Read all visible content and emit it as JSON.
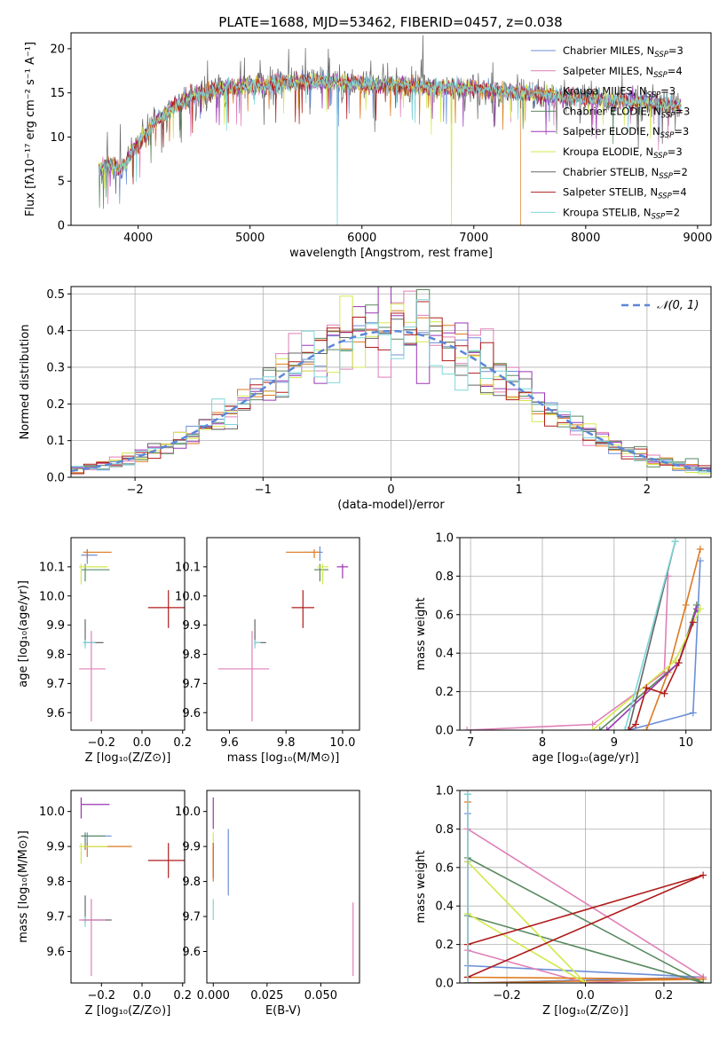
{
  "title": "PLATE=1688, MJD=53462, FIBERID=0457, z=0.038",
  "colors": {
    "Chabrier MILES": "#6b8fd6",
    "Salpeter MILES": "#e07fb7",
    "Kroupa MILES": "#dd7a1f",
    "Chabrier ELODIE": "#5a8a60",
    "Salpeter ELODIE": "#9b36b5",
    "Kroupa ELODIE": "#d3e84b",
    "Chabrier STELIB": "#666666",
    "Salpeter STELIB": "#b01c1c",
    "Kroupa STELIB": "#7fd6da"
  },
  "legend_spectrum": [
    {
      "key": "Chabrier MILES",
      "pre": "Chabrier MILES, N",
      "sub": "SSP",
      "post": "=3"
    },
    {
      "key": "Salpeter MILES",
      "pre": "Salpeter MILES, N",
      "sub": "SSP",
      "post": "=4"
    },
    {
      "key": "Kroupa MILES",
      "pre": "Kroupa MILES, N",
      "sub": "SSP",
      "post": "=3"
    },
    {
      "key": "Chabrier ELODIE",
      "pre": "Chabrier ELODIE, N",
      "sub": "SSP",
      "post": "=3"
    },
    {
      "key": "Salpeter ELODIE",
      "pre": "Salpeter ELODIE, N",
      "sub": "SSP",
      "post": "=3"
    },
    {
      "key": "Kroupa ELODIE",
      "pre": "Kroupa ELODIE, N",
      "sub": "SSP",
      "post": "=3"
    },
    {
      "key": "Chabrier STELIB",
      "pre": "Chabrier STELIB, N",
      "sub": "SSP",
      "post": "=2"
    },
    {
      "key": "Salpeter STELIB",
      "pre": "Salpeter STELIB, N",
      "sub": "SSP",
      "post": "=4"
    },
    {
      "key": "Kroupa STELIB",
      "pre": "Kroupa STELIB, N",
      "sub": "SSP",
      "post": "=2"
    }
  ],
  "chart_data": [
    {
      "id": "spectrum",
      "type": "line",
      "title": "PLATE=1688, MJD=53462, FIBERID=0457, z=0.038",
      "xlabel": "wavelength [Angstrom, rest frame]",
      "ylabel": "Flux [fλ10⁻¹⁷ erg cm⁻² s⁻¹ A⁻¹]",
      "xlim": [
        3400,
        9120
      ],
      "ylim": [
        0,
        21.8
      ],
      "xticks": [
        4000,
        5000,
        6000,
        7000,
        8000,
        9000
      ],
      "yticks": [
        0,
        5,
        10,
        15,
        20
      ],
      "x_start": 3650,
      "x_end": 8850,
      "continuum": [
        [
          3650,
          6.5
        ],
        [
          3750,
          6.8
        ],
        [
          3850,
          6.2
        ],
        [
          3950,
          8.5
        ],
        [
          4050,
          9.8
        ],
        [
          4150,
          11.8
        ],
        [
          4250,
          12.5
        ],
        [
          4350,
          13.8
        ],
        [
          4450,
          14.5
        ],
        [
          4600,
          15.2
        ],
        [
          4800,
          15.6
        ],
        [
          5000,
          15.8
        ],
        [
          5200,
          15.9
        ],
        [
          5400,
          16.2
        ],
        [
          5600,
          16.3
        ],
        [
          5800,
          16.1
        ],
        [
          6000,
          16.0
        ],
        [
          6200,
          15.9
        ],
        [
          6400,
          15.8
        ],
        [
          6600,
          15.5
        ],
        [
          6800,
          15.6
        ],
        [
          7000,
          15.4
        ],
        [
          7200,
          15.2
        ],
        [
          7400,
          15.0
        ],
        [
          7600,
          14.8
        ],
        [
          7800,
          14.6
        ],
        [
          8000,
          14.4
        ],
        [
          8200,
          14.2
        ],
        [
          8400,
          14.0
        ],
        [
          8600,
          13.8
        ],
        [
          8850,
          13.5
        ]
      ],
      "drops": [
        {
          "series": "Kroupa STELIB",
          "x": 5780
        },
        {
          "series": "Kroupa ELODIE",
          "x": 6800
        },
        {
          "series": "Kroupa MILES",
          "x": 7420
        }
      ]
    },
    {
      "id": "residuals",
      "type": "histogram",
      "xlabel": "(data-model)/error",
      "ylabel": "Normed distribution",
      "xlim": [
        -2.5,
        2.5
      ],
      "ylim": [
        0,
        0.52
      ],
      "xticks": [
        -2,
        -1,
        0,
        1,
        2
      ],
      "yticks": [
        0.0,
        0.1,
        0.2,
        0.3,
        0.4,
        0.5
      ],
      "bin_width": 0.1,
      "grid": true,
      "reference": {
        "label": "𝒩(0, 1)",
        "mu": 0,
        "sigma": 1
      }
    },
    {
      "id": "age-vs-Z",
      "type": "errorbar",
      "xlabel": "Z [log₁₀(Z/Z⊙)]",
      "ylabel": "age  [log₁₀(age/yr)]",
      "xlim": [
        -0.35,
        0.21
      ],
      "ylim": [
        9.54,
        10.2
      ],
      "xticks": [
        -0.2,
        0.0,
        0.2
      ],
      "yticks": [
        9.6,
        9.7,
        9.8,
        9.9,
        10.0,
        10.1
      ],
      "points": [
        {
          "series": "Chabrier MILES",
          "x": -0.27,
          "y": 10.14,
          "xlo": 0.03,
          "xhi": 0.05,
          "ylo": 0.03,
          "yhi": 0.02
        },
        {
          "series": "Kroupa MILES",
          "x": -0.27,
          "y": 10.15,
          "xlo": 0.02,
          "xhi": 0.12,
          "ylo": 0.02,
          "yhi": 0.01
        },
        {
          "series": "Chabrier ELODIE",
          "x": -0.28,
          "y": 10.09,
          "xlo": 0.02,
          "xhi": 0.12,
          "ylo": 0.04,
          "yhi": 0.02
        },
        {
          "series": "Kroupa ELODIE",
          "x": -0.3,
          "y": 10.1,
          "xlo": 0.01,
          "xhi": 0.13,
          "ylo": 0.06,
          "yhi": 0.01
        },
        {
          "series": "Salpeter STELIB",
          "x": 0.13,
          "y": 9.96,
          "xlo": 0.1,
          "xhi": 0.09,
          "ylo": 0.07,
          "yhi": 0.06
        },
        {
          "series": "Chabrier STELIB",
          "x": -0.28,
          "y": 9.84,
          "xlo": 0.01,
          "xhi": 0.09,
          "ylo": 0.01,
          "yhi": 0.08
        },
        {
          "series": "Kroupa STELIB",
          "x": -0.28,
          "y": 9.84,
          "xlo": 0.01,
          "xhi": 0.05,
          "ylo": 0.02,
          "yhi": 0.01
        },
        {
          "series": "Salpeter MILES",
          "x": -0.25,
          "y": 9.75,
          "xlo": 0.06,
          "xhi": 0.07,
          "ylo": 0.18,
          "yhi": 0.13
        }
      ]
    },
    {
      "id": "age-vs-mass",
      "type": "errorbar",
      "xlabel": "mass [log₁₀(M/M⊙)]",
      "ylabel": "",
      "xlim": [
        9.52,
        10.06
      ],
      "ylim": [
        9.54,
        10.2
      ],
      "xticks": [
        9.6,
        9.8,
        10.0
      ],
      "yticks": [
        9.6,
        9.7,
        9.8,
        9.9,
        10.0,
        10.1
      ],
      "points": [
        {
          "series": "Chabrier MILES",
          "x": 9.92,
          "y": 10.15,
          "xlo": 0.06,
          "xhi": 0.01,
          "ylo": 0.03,
          "yhi": 0.02
        },
        {
          "series": "Kroupa MILES",
          "x": 9.9,
          "y": 10.15,
          "xlo": 0.1,
          "xhi": 0.02,
          "ylo": 0.02,
          "yhi": 0.01
        },
        {
          "series": "Salpeter ELODIE",
          "x": 10.0,
          "y": 10.1,
          "xlo": 0.02,
          "xhi": 0.02,
          "ylo": 0.04,
          "yhi": 0.01
        },
        {
          "series": "Chabrier ELODIE",
          "x": 9.92,
          "y": 10.09,
          "xlo": 0.02,
          "xhi": 0.03,
          "ylo": 0.04,
          "yhi": 0.02
        },
        {
          "series": "Kroupa ELODIE",
          "x": 9.93,
          "y": 10.1,
          "xlo": 0.02,
          "xhi": 0.02,
          "ylo": 0.06,
          "yhi": 0.01
        },
        {
          "series": "Salpeter STELIB",
          "x": 9.86,
          "y": 9.96,
          "xlo": 0.04,
          "xhi": 0.04,
          "ylo": 0.07,
          "yhi": 0.06
        },
        {
          "series": "Chabrier STELIB",
          "x": 9.69,
          "y": 9.84,
          "xlo": 0.0,
          "xhi": 0.04,
          "ylo": 0.01,
          "yhi": 0.08
        },
        {
          "series": "Kroupa STELIB",
          "x": 9.69,
          "y": 9.84,
          "xlo": 0.0,
          "xhi": 0.02,
          "ylo": 0.02,
          "yhi": 0.01
        },
        {
          "series": "Salpeter MILES",
          "x": 9.68,
          "y": 9.75,
          "xlo": 0.12,
          "xhi": 0.06,
          "ylo": 0.18,
          "yhi": 0.13
        }
      ]
    },
    {
      "id": "cumulative-mass-vs-age",
      "type": "line",
      "xlabel": "age  [log₁₀(age/yr)]",
      "ylabel": "mass weight",
      "xlim": [
        6.85,
        10.35
      ],
      "ylim": [
        0,
        1
      ],
      "xticks": [
        7,
        8,
        9,
        10
      ],
      "yticks": [
        0.0,
        0.2,
        0.4,
        0.6,
        0.8,
        1.0
      ],
      "series": [
        {
          "name": "Chabrier MILES",
          "x": [
            9.2,
            10.1,
            10.2
          ],
          "y": [
            0.0,
            0.09,
            0.88
          ]
        },
        {
          "name": "Salpeter MILES",
          "x": [
            6.95,
            8.7,
            9.7,
            9.75
          ],
          "y": [
            0.0,
            0.03,
            0.3,
            0.8
          ]
        },
        {
          "name": "Kroupa MILES",
          "x": [
            9.45,
            9.75,
            10.0,
            10.2
          ],
          "y": [
            0.0,
            0.3,
            0.65,
            0.94
          ]
        },
        {
          "name": "Chabrier ELODIE",
          "x": [
            8.8,
            9.9,
            10.15
          ],
          "y": [
            0.0,
            0.35,
            0.65
          ]
        },
        {
          "name": "Salpeter ELODIE",
          "x": [
            8.9,
            9.9,
            10.15
          ],
          "y": [
            0.0,
            0.35,
            0.63
          ]
        },
        {
          "name": "Kroupa ELODIE",
          "x": [
            8.7,
            9.85,
            10.2
          ],
          "y": [
            0.0,
            0.36,
            0.63
          ]
        },
        {
          "name": "Chabrier STELIB",
          "x": [
            9.2,
            9.85
          ],
          "y": [
            0.0,
            0.98
          ]
        },
        {
          "name": "Salpeter STELIB",
          "x": [
            9.2,
            9.3,
            9.45,
            9.7,
            9.9,
            10.1
          ],
          "y": [
            0.0,
            0.03,
            0.22,
            0.19,
            0.35,
            0.56
          ]
        },
        {
          "name": "Kroupa STELIB",
          "x": [
            9.15,
            9.85
          ],
          "y": [
            0.0,
            0.98
          ]
        }
      ]
    },
    {
      "id": "mass-vs-Z",
      "type": "errorbar",
      "xlabel": "Z [log₁₀(Z/Z⊙)]",
      "ylabel": "mass [log₁₀(M/M⊙)]",
      "xlim": [
        -0.35,
        0.21
      ],
      "ylim": [
        9.51,
        10.06
      ],
      "xticks": [
        -0.2,
        0.0,
        0.2
      ],
      "yticks": [
        9.6,
        9.7,
        9.8,
        9.9,
        10.0
      ],
      "points": [
        {
          "series": "Salpeter ELODIE",
          "x": -0.3,
          "y": 10.02,
          "xlo": 0.0,
          "xhi": 0.14,
          "ylo": 0.04,
          "yhi": 0.02
        },
        {
          "series": "Chabrier MILES",
          "x": -0.27,
          "y": 9.93,
          "xlo": 0.03,
          "xhi": 0.12,
          "ylo": 0.03,
          "yhi": 0.01
        },
        {
          "series": "Chabrier ELODIE",
          "x": -0.28,
          "y": 9.93,
          "xlo": 0.02,
          "xhi": 0.1,
          "ylo": 0.04,
          "yhi": 0.01
        },
        {
          "series": "Kroupa MILES",
          "x": -0.27,
          "y": 9.9,
          "xlo": 0.02,
          "xhi": 0.22,
          "ylo": 0.03,
          "yhi": 0.01
        },
        {
          "series": "Kroupa ELODIE",
          "x": -0.3,
          "y": 9.9,
          "xlo": 0.01,
          "xhi": 0.13,
          "ylo": 0.05,
          "yhi": 0.01
        },
        {
          "series": "Salpeter STELIB",
          "x": 0.13,
          "y": 9.86,
          "xlo": 0.1,
          "xhi": 0.09,
          "ylo": 0.05,
          "yhi": 0.05
        },
        {
          "series": "Chabrier STELIB",
          "x": -0.28,
          "y": 9.69,
          "xlo": 0.01,
          "xhi": 0.13,
          "ylo": 0.01,
          "yhi": 0.07
        },
        {
          "series": "Kroupa STELIB",
          "x": -0.28,
          "y": 9.69,
          "xlo": 0.02,
          "xhi": 0.08,
          "ylo": 0.02,
          "yhi": 0.01
        },
        {
          "series": "Salpeter MILES",
          "x": -0.25,
          "y": 9.69,
          "xlo": 0.06,
          "xhi": 0.07,
          "ylo": 0.16,
          "yhi": 0.06
        }
      ]
    },
    {
      "id": "mass-vs-EBV",
      "type": "errorbar",
      "xlabel": "E(B-V)",
      "ylabel": "",
      "xlim": [
        -0.003,
        0.068
      ],
      "ylim": [
        9.51,
        10.06
      ],
      "xticks": [
        0.0,
        0.025,
        0.05
      ],
      "yticks": [
        9.6,
        9.7,
        9.8,
        9.9,
        10.0
      ],
      "points": [
        {
          "series": "Salpeter ELODIE",
          "x": 0.0,
          "y": 10.0,
          "xlo": 0.0,
          "xhi": 0.0,
          "ylo": 0.05,
          "yhi": 0.04
        },
        {
          "series": "Kroupa ELODIE",
          "x": 0.0,
          "y": 9.9,
          "xlo": 0.0,
          "xhi": 0.0,
          "ylo": 0.05,
          "yhi": 0.04
        },
        {
          "series": "Salpeter STELIB",
          "x": 0.0,
          "y": 9.86,
          "xlo": 0.0,
          "xhi": 0.0,
          "ylo": 0.05,
          "yhi": 0.05
        },
        {
          "series": "Kroupa MILES",
          "x": 0.0,
          "y": 9.86,
          "xlo": 0.0,
          "xhi": 0.0,
          "ylo": 0.06,
          "yhi": 0.05
        },
        {
          "series": "Chabrier MILES",
          "x": 0.007,
          "y": 9.85,
          "xlo": 0.0,
          "xhi": 0.0,
          "ylo": 0.09,
          "yhi": 0.1
        },
        {
          "series": "Kroupa STELIB",
          "x": 0.0,
          "y": 9.72,
          "xlo": 0.0,
          "xhi": 0.0,
          "ylo": 0.03,
          "yhi": 0.03
        },
        {
          "series": "Salpeter MILES",
          "x": 0.065,
          "y": 9.63,
          "xlo": 0.0,
          "xhi": 0.0,
          "ylo": 0.1,
          "yhi": 0.11
        }
      ]
    },
    {
      "id": "cumulative-mass-vs-Z",
      "type": "line",
      "xlabel": "Z [log₁₀(Z/Z⊙)]",
      "ylabel": "mass weight",
      "xlim": [
        -0.32,
        0.32
      ],
      "ylim": [
        0,
        1
      ],
      "xticks": [
        -0.2,
        0.0,
        0.2
      ],
      "yticks": [
        0.0,
        0.2,
        0.4,
        0.6,
        0.8,
        1.0
      ],
      "series": [
        {
          "name": "Chabrier MILES",
          "x": [
            -0.3,
            0.3,
            -0.3,
            -0.3
          ],
          "y": [
            0.09,
            0.03,
            0.0,
            0.88
          ]
        },
        {
          "name": "Salpeter MILES",
          "x": [
            -0.3,
            0.0,
            0.3,
            -0.3
          ],
          "y": [
            0.17,
            0.0,
            0.03,
            0.8
          ]
        },
        {
          "name": "Kroupa MILES",
          "x": [
            -0.3,
            0.3,
            -0.3,
            -0.3
          ],
          "y": [
            0.03,
            0.02,
            0.0,
            0.94
          ]
        },
        {
          "name": "Chabrier ELODIE",
          "x": [
            -0.3,
            0.3,
            -0.3
          ],
          "y": [
            0.65,
            0.0,
            0.35
          ]
        },
        {
          "name": "Salpeter ELODIE",
          "x": [
            -0.3,
            -0.3
          ],
          "y": [
            0.0,
            0.63
          ]
        },
        {
          "name": "Kroupa ELODIE",
          "x": [
            -0.3,
            0.0,
            -0.3
          ],
          "y": [
            0.63,
            0.0,
            0.36
          ]
        },
        {
          "name": "Chabrier STELIB",
          "x": [
            -0.3,
            -0.3
          ],
          "y": [
            0.0,
            0.98
          ]
        },
        {
          "name": "Salpeter STELIB",
          "x": [
            -0.3,
            0.3,
            -0.3,
            -0.3
          ],
          "y": [
            0.03,
            0.56,
            0.2,
            0.0
          ]
        },
        {
          "name": "Kroupa STELIB",
          "x": [
            -0.3,
            -0.3
          ],
          "y": [
            0.0,
            0.98
          ]
        }
      ]
    }
  ]
}
